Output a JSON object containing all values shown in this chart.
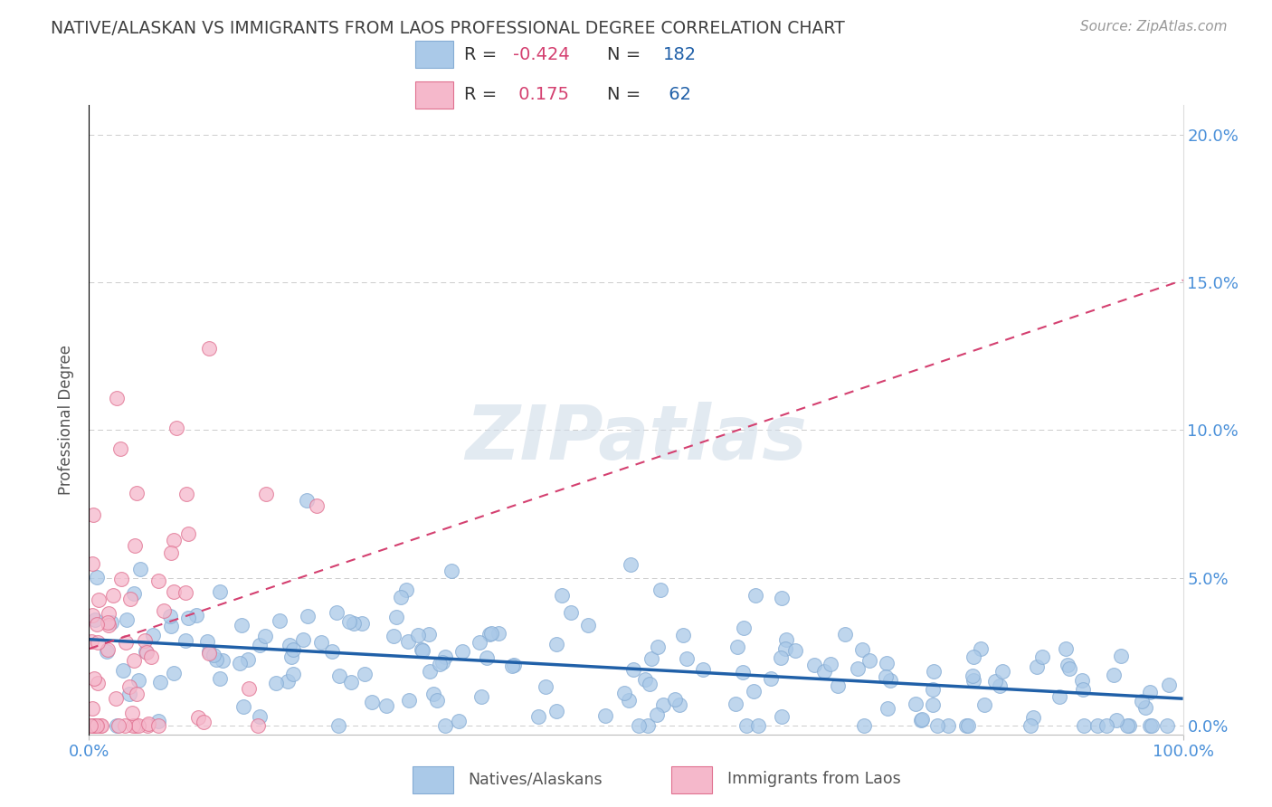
{
  "title": "NATIVE/ALASKAN VS IMMIGRANTS FROM LAOS PROFESSIONAL DEGREE CORRELATION CHART",
  "source_text": "Source: ZipAtlas.com",
  "ylabel": "Professional Degree",
  "watermark": "ZIPatlas",
  "xlim": [
    0.0,
    100.0
  ],
  "ylim": [
    -0.3,
    21.0
  ],
  "yticks": [
    0.0,
    5.0,
    10.0,
    15.0,
    20.0
  ],
  "xticks": [
    0.0,
    100.0
  ],
  "native_R": -0.424,
  "native_N": 182,
  "laos_R": 0.175,
  "laos_N": 62,
  "native_color": "#aac9e8",
  "native_edge_color": "#85acd4",
  "native_line_color": "#2060a8",
  "laos_color": "#f5b8cb",
  "laos_edge_color": "#e07090",
  "laos_line_color": "#d44070",
  "legend_label_native": "Natives/Alaskans",
  "legend_label_laos": "Immigrants from Laos",
  "background_color": "#ffffff",
  "grid_color": "#cccccc",
  "title_color": "#404040",
  "axis_tick_color": "#4a90d9",
  "r_value_color": "#d44070",
  "n_value_color": "#2060a8"
}
